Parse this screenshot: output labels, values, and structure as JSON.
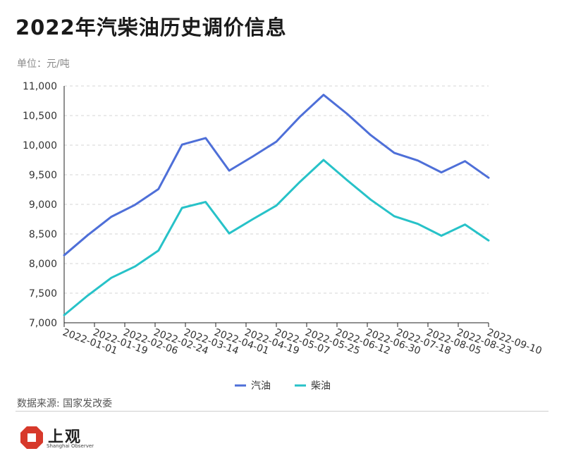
{
  "title": "2022年汽柴油历史调价信息",
  "unit_label": "单位：元/吨",
  "source": "数据来源: 国家发改委",
  "logo": {
    "name": "上观",
    "subtitle": "Shanghai Observer",
    "mark_color": "#d7392b"
  },
  "chart_data": {
    "type": "line",
    "title": "2022年汽柴油历史调价信息",
    "ylabel": "",
    "xlabel": "",
    "ylim": [
      7000,
      11000
    ],
    "y_ticks": [
      7000,
      7500,
      8000,
      8500,
      9000,
      9500,
      10000,
      10500,
      11000
    ],
    "y_tick_labels": [
      "7,000",
      "7,500",
      "8,000",
      "8,500",
      "9,000",
      "9,500",
      "10,000",
      "10,500",
      "11,000"
    ],
    "x_tick_labels": [
      "2022-01-01",
      "2022-01-19",
      "2022-02-06",
      "2022-02-24",
      "2022-03-14",
      "2022-04-01",
      "2022-04-19",
      "2022-05-07",
      "2022-05-25",
      "2022-06-12",
      "2022-06-30",
      "2022-07-18",
      "2022-08-05",
      "2022-08-23",
      "2022-09-10"
    ],
    "grid": "horizontal dashed",
    "legend_position": "bottom-center",
    "series": [
      {
        "name": "汽油",
        "color": "#4e6fd8",
        "values": [
          8140,
          8480,
          8790,
          8990,
          9260,
          10010,
          10120,
          9570,
          9810,
          10060,
          10480,
          10850,
          10530,
          10170,
          9870,
          9740,
          9540,
          9730,
          9450
        ]
      },
      {
        "name": "柴油",
        "color": "#27c2c8",
        "values": [
          7130,
          7460,
          7760,
          7950,
          8220,
          8940,
          9040,
          8510,
          8750,
          8980,
          9380,
          9750,
          9410,
          9080,
          8800,
          8670,
          8470,
          8660,
          8390
        ]
      }
    ]
  }
}
